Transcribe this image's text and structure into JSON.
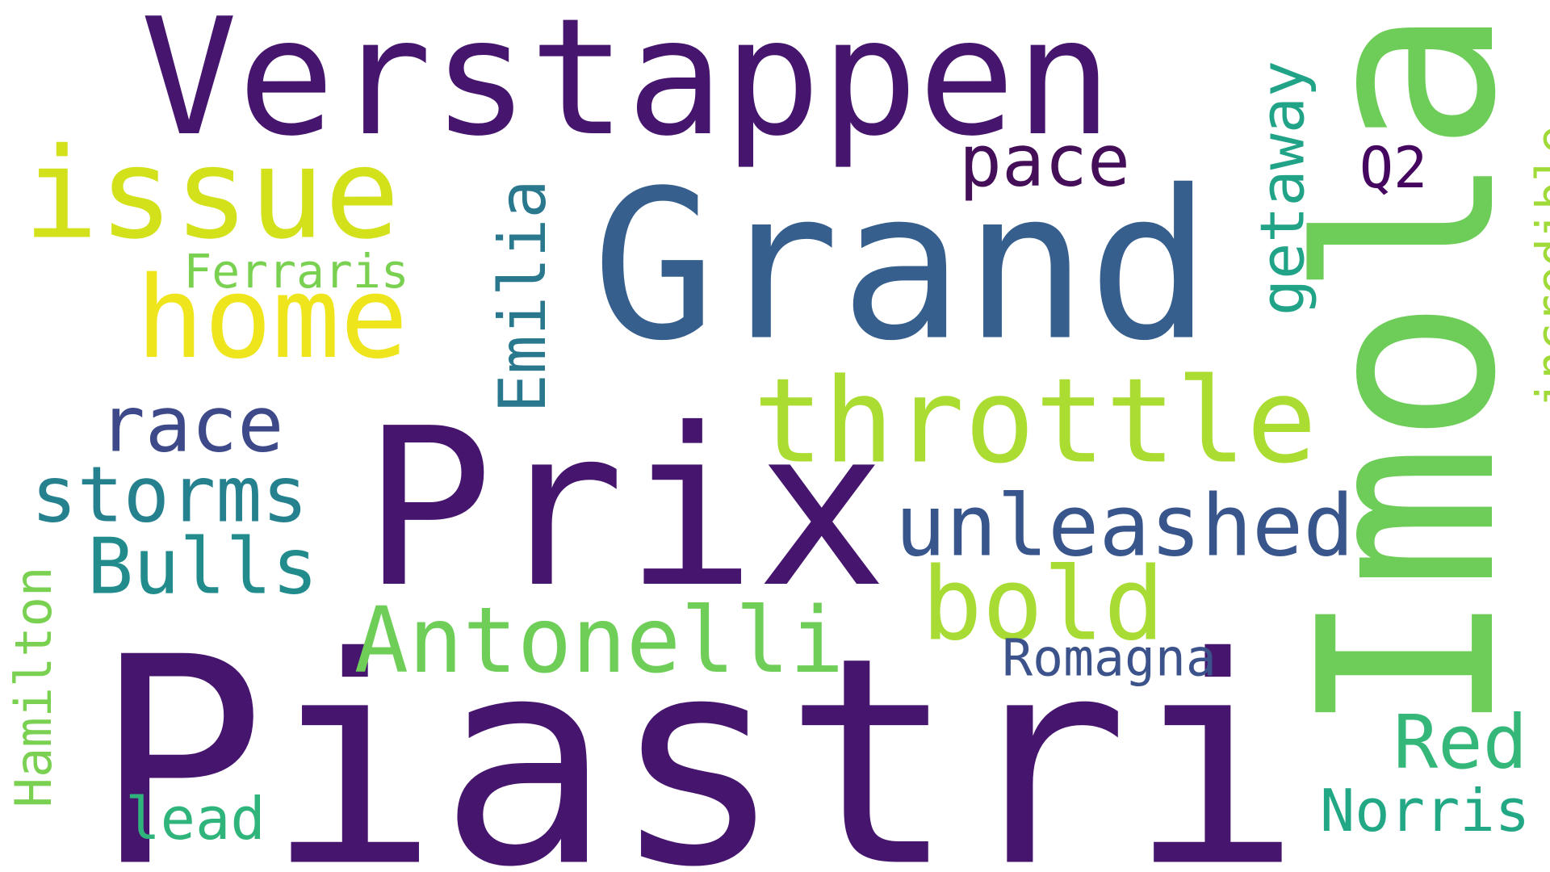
{
  "words": {
    "piastri": {
      "text": "Piastri",
      "color": "#46166f"
    },
    "verstappen": {
      "text": "Verstappen",
      "color": "#46166f"
    },
    "grand": {
      "text": "Grand",
      "color": "#365f8d"
    },
    "prix": {
      "text": "Prix",
      "color": "#46166f"
    },
    "imola": {
      "text": "Imola",
      "color": "#6ecc59"
    },
    "issue": {
      "text": "issue",
      "color": "#d3e11b"
    },
    "home": {
      "text": "home",
      "color": "#efe51c"
    },
    "throttle": {
      "text": "throttle",
      "color": "#aadc32"
    },
    "unleashed": {
      "text": "unleashed",
      "color": "#39568c"
    },
    "bold": {
      "text": "bold",
      "color": "#a8db34"
    },
    "antonelli": {
      "text": "Antonelli",
      "color": "#6ece58"
    },
    "pace": {
      "text": "pace",
      "color": "#440e58"
    },
    "q2": {
      "text": "Q2",
      "color": "#45065f"
    },
    "ferraris": {
      "text": "Ferraris",
      "color": "#7ad151"
    },
    "race": {
      "text": "race",
      "color": "#3e4989"
    },
    "storms": {
      "text": "storms",
      "color": "#26818e"
    },
    "bulls": {
      "text": "Bulls",
      "color": "#228c8d"
    },
    "emilia": {
      "text": "Emilia",
      "color": "#2a788e"
    },
    "getaway": {
      "text": "getaway",
      "color": "#20a387"
    },
    "incredible": {
      "text": "incredible",
      "color": "#a0da39"
    },
    "hamilton": {
      "text": "Hamilton",
      "color": "#7ad151"
    },
    "romagna": {
      "text": "Romagna",
      "color": "#3b528b"
    },
    "red": {
      "text": "Red",
      "color": "#35b779"
    },
    "norris": {
      "text": "Norris",
      "color": "#22a884"
    },
    "lead": {
      "text": "lead",
      "color": "#2fb47c"
    }
  }
}
